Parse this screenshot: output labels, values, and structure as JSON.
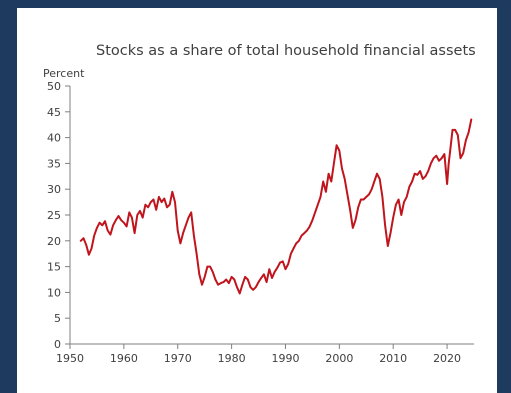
{
  "colors": {
    "frame": "#1f3a5f",
    "line": "#c0151c",
    "axis": "#7f7f7f",
    "text": "#404040"
  },
  "chart_data": {
    "type": "line",
    "title": "Stocks as a share of total household financial assets",
    "ylabel": "Percent",
    "xlabel": "",
    "xlim": [
      1950,
      2025
    ],
    "ylim": [
      0,
      50
    ],
    "xticks": [
      1950,
      1960,
      1970,
      1980,
      1990,
      2000,
      2010,
      2020
    ],
    "yticks": [
      0,
      5,
      10,
      15,
      20,
      25,
      30,
      35,
      40,
      45,
      50
    ],
    "grid": false,
    "series": [
      {
        "x": [
          1952.0,
          1952.5,
          1953.0,
          1953.5,
          1954.0,
          1954.5,
          1955.0,
          1955.5,
          1956.0,
          1956.5,
          1957.0,
          1957.5,
          1958.0,
          1958.5,
          1959.0,
          1959.5,
          1960.0,
          1960.5,
          1961.0,
          1961.5,
          1962.0,
          1962.5,
          1963.0,
          1963.5,
          1964.0,
          1964.5,
          1965.0,
          1965.5,
          1966.0,
          1966.5,
          1967.0,
          1967.5,
          1968.0,
          1968.5,
          1969.0,
          1969.5,
          1970.0,
          1970.5,
          1971.0,
          1971.5,
          1972.0,
          1972.5,
          1973.0,
          1973.5,
          1974.0,
          1974.5,
          1975.0,
          1975.5,
          1976.0,
          1976.5,
          1977.0,
          1977.5,
          1978.0,
          1978.5,
          1979.0,
          1979.5,
          1980.0,
          1980.5,
          1981.0,
          1981.5,
          1982.0,
          1982.5,
          1983.0,
          1983.5,
          1984.0,
          1984.5,
          1985.0,
          1985.5,
          1986.0,
          1986.5,
          1987.0,
          1987.5,
          1988.0,
          1988.5,
          1989.0,
          1989.5,
          1990.0,
          1990.5,
          1991.0,
          1991.5,
          1992.0,
          1992.5,
          1993.0,
          1993.5,
          1994.0,
          1994.5,
          1995.0,
          1995.5,
          1996.0,
          1996.5,
          1997.0,
          1997.5,
          1998.0,
          1998.5,
          1999.0,
          1999.5,
          2000.0,
          2000.5,
          2001.0,
          2001.5,
          2002.0,
          2002.5,
          2003.0,
          2003.5,
          2004.0,
          2004.5,
          2005.0,
          2005.5,
          2006.0,
          2006.5,
          2007.0,
          2007.5,
          2008.0,
          2008.5,
          2009.0,
          2009.5,
          2010.0,
          2010.5,
          2011.0,
          2011.5,
          2012.0,
          2012.5,
          2013.0,
          2013.5,
          2014.0,
          2014.5,
          2015.0,
          2015.5,
          2016.0,
          2016.5,
          2017.0,
          2017.5,
          2018.0,
          2018.5,
          2019.0,
          2019.5,
          2020.0,
          2020.3,
          2020.7,
          2021.0,
          2021.5,
          2022.0,
          2022.5,
          2023.0,
          2023.5,
          2024.0,
          2024.5
        ],
        "values": [
          20.0,
          20.5,
          19.2,
          17.3,
          18.5,
          21.0,
          22.5,
          23.5,
          23.0,
          23.8,
          22.0,
          21.2,
          23.0,
          24.0,
          24.8,
          24.0,
          23.5,
          22.8,
          25.5,
          24.5,
          21.5,
          25.0,
          25.8,
          24.5,
          27.0,
          26.5,
          27.5,
          28.0,
          26.0,
          28.5,
          27.5,
          28.2,
          26.5,
          27.0,
          29.5,
          27.5,
          22.0,
          19.5,
          21.5,
          23.0,
          24.5,
          25.5,
          21.0,
          17.5,
          13.5,
          11.5,
          13.0,
          15.0,
          15.0,
          14.0,
          12.5,
          11.5,
          11.8,
          12.0,
          12.5,
          11.8,
          13.0,
          12.5,
          11.0,
          9.8,
          11.5,
          13.0,
          12.5,
          11.0,
          10.5,
          11.0,
          12.0,
          12.8,
          13.5,
          12.0,
          14.5,
          12.8,
          14.0,
          14.8,
          15.8,
          16.0,
          14.5,
          15.5,
          17.5,
          18.5,
          19.5,
          20.0,
          21.0,
          21.5,
          22.0,
          22.8,
          24.0,
          25.5,
          27.0,
          28.5,
          31.5,
          29.5,
          33.0,
          31.5,
          35.0,
          38.5,
          37.5,
          34.0,
          32.0,
          29.0,
          26.0,
          22.5,
          24.0,
          26.5,
          28.0,
          28.0,
          28.5,
          29.0,
          30.0,
          31.5,
          33.0,
          32.0,
          28.5,
          23.0,
          19.0,
          21.5,
          24.5,
          27.0,
          28.0,
          25.0,
          27.5,
          28.5,
          30.5,
          31.5,
          33.0,
          32.8,
          33.5,
          32.0,
          32.5,
          33.5,
          35.0,
          36.0,
          36.5,
          35.5,
          36.0,
          36.8,
          31.0,
          35.0,
          38.5,
          41.5,
          41.5,
          40.5,
          36.0,
          37.0,
          39.5,
          41.0,
          43.5
        ]
      }
    ]
  }
}
